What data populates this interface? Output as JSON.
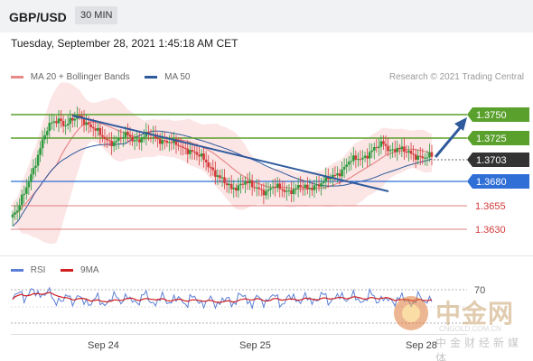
{
  "header": {
    "symbol": "GBP/USD",
    "timeframe": "30 MIN"
  },
  "datetime": "Tuesday, September 28, 2021 1:45:18 AM CET",
  "legend": {
    "ma20_label": "MA 20 + Bollinger Bands",
    "ma50_label": "MA 50",
    "ma20_color": "#e88a8a",
    "ma50_color": "#2f5a9c"
  },
  "credit": "Research © 2021 Trading Central",
  "rsi_legend": {
    "rsi_label": "RSI",
    "ma_label": "9MA",
    "rsi_color": "#5b7fd6",
    "ma_color": "#d01f1f"
  },
  "watermark": {
    "cn": "中金网",
    "url": "CNGOLD.COM.CN",
    "sub": "中金财经新媒体"
  },
  "colors": {
    "resistance": "#5aa02c",
    "support": "#2f6fd6",
    "weak_support": "#d95a5a",
    "current": "#333333",
    "trend": "#2f5a9c",
    "band_fill": "#fadcdc",
    "candle_up": "#2c9a3e",
    "candle_down": "#d33a3a"
  },
  "chart_data": {
    "type": "candlestick",
    "x_ticks": [
      "Sep 24",
      "Sep 25",
      "Sep 28"
    ],
    "y_range": [
      1.3605,
      1.377
    ],
    "levels": [
      {
        "value": 1.375,
        "label": "1.3750",
        "kind": "resistance"
      },
      {
        "value": 1.3725,
        "label": "1.3725",
        "kind": "resistance"
      },
      {
        "value": 1.3703,
        "label": "1.3703",
        "kind": "current"
      },
      {
        "value": 1.368,
        "label": "1.3680",
        "kind": "support"
      },
      {
        "value": 1.3655,
        "label": "1.3655",
        "kind": "weak_support"
      },
      {
        "value": 1.363,
        "label": "1.3630",
        "kind": "weak_support"
      }
    ],
    "close": [
      1.3648,
      1.3665,
      1.3685,
      1.3705,
      1.3725,
      1.3738,
      1.3742,
      1.3735,
      1.374,
      1.3745,
      1.3738,
      1.3732,
      1.3725,
      1.372,
      1.3718,
      1.3722,
      1.3725,
      1.372,
      1.3722,
      1.3726,
      1.3722,
      1.372,
      1.3718,
      1.3715,
      1.3712,
      1.371,
      1.3705,
      1.37,
      1.3692,
      1.3684,
      1.3676,
      1.367,
      1.3674,
      1.3678,
      1.3672,
      1.367,
      1.3668,
      1.3672,
      1.367,
      1.3668,
      1.367,
      1.3672,
      1.367,
      1.3674,
      1.3676,
      1.368,
      1.3684,
      1.369,
      1.3698,
      1.37,
      1.3702,
      1.3708,
      1.3712,
      1.3716,
      1.371,
      1.3712,
      1.3708,
      1.3706,
      1.3704,
      1.3702,
      1.3703
    ],
    "rsi": {
      "ticks": [
        70
      ],
      "rsi_range": [
        20,
        80
      ]
    }
  }
}
